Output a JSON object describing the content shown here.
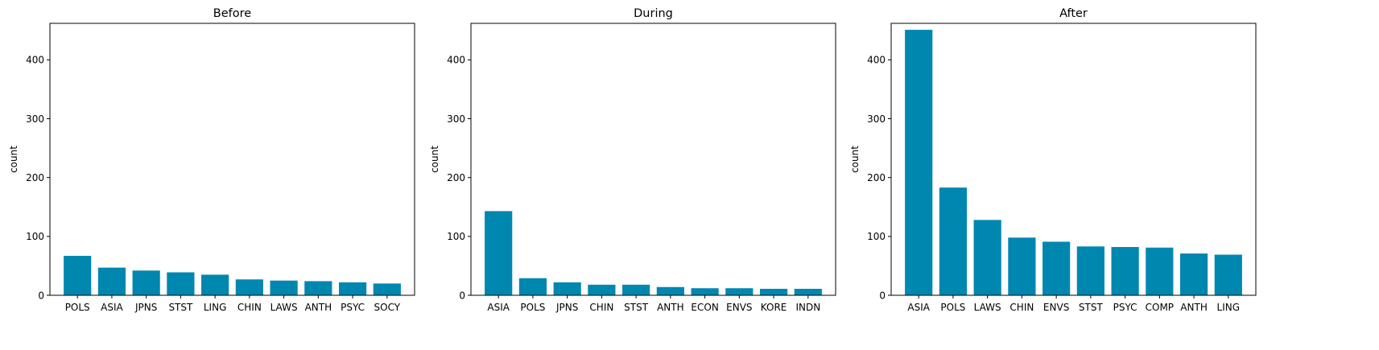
{
  "chart_data": [
    {
      "type": "bar",
      "title": "Before",
      "ylabel": "count",
      "xlabel": "",
      "ylim": [
        0,
        462
      ],
      "yticks": [
        0,
        100,
        200,
        300,
        400
      ],
      "categories": [
        "POLS",
        "ASIA",
        "JPNS",
        "STST",
        "LING",
        "CHIN",
        "LAWS",
        "ANTH",
        "PSYC",
        "SOCY"
      ],
      "values": [
        67,
        47,
        42,
        39,
        35,
        27,
        25,
        24,
        22,
        20
      ],
      "color": "#0087b0"
    },
    {
      "type": "bar",
      "title": "During",
      "ylabel": "count",
      "xlabel": "",
      "ylim": [
        0,
        462
      ],
      "yticks": [
        0,
        100,
        200,
        300,
        400
      ],
      "categories": [
        "ASIA",
        "POLS",
        "JPNS",
        "CHIN",
        "STST",
        "ANTH",
        "ECON",
        "ENVS",
        "KORE",
        "INDN"
      ],
      "values": [
        143,
        29,
        22,
        18,
        18,
        14,
        12,
        12,
        11,
        11
      ],
      "color": "#0087b0"
    },
    {
      "type": "bar",
      "title": "After",
      "ylabel": "count",
      "xlabel": "",
      "ylim": [
        0,
        462
      ],
      "yticks": [
        0,
        100,
        200,
        300,
        400
      ],
      "categories": [
        "ASIA",
        "POLS",
        "LAWS",
        "CHIN",
        "ENVS",
        "STST",
        "PSYC",
        "COMP",
        "ANTH",
        "LING"
      ],
      "values": [
        451,
        183,
        128,
        98,
        91,
        83,
        82,
        81,
        71,
        69
      ],
      "color": "#0087b0"
    }
  ]
}
